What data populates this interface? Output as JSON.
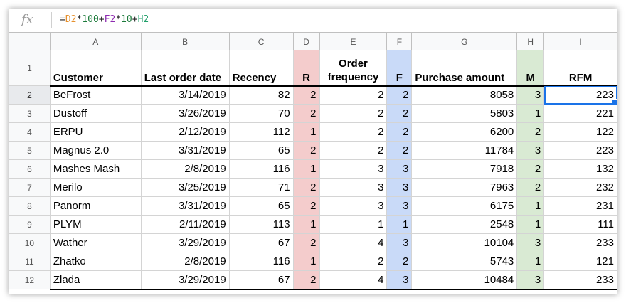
{
  "formula_bar": {
    "icon": "fx-icon",
    "fx_label": "fx",
    "parts": {
      "eq": "=",
      "d2": "D2",
      "t1": "*",
      "n100": "100",
      "p1": "+",
      "f2": "F2",
      "t2": "*",
      "n10": "10",
      "p2": "+",
      "h2": "H2"
    }
  },
  "colors": {
    "r_fill": "#f4cccc",
    "f_fill": "#c9daf8",
    "m_fill": "#d9ead3",
    "selection": "#1a73e8"
  },
  "columns": [
    "A",
    "B",
    "C",
    "D",
    "E",
    "F",
    "G",
    "H",
    "I"
  ],
  "row_numbers": [
    "1",
    "2",
    "3",
    "4",
    "5",
    "6",
    "7",
    "8",
    "9",
    "10",
    "11",
    "12"
  ],
  "headers": {
    "customer": "Customer",
    "last_order_date": "Last order date",
    "recency": "Recency",
    "r": "R",
    "order_frequency": "Order frequency",
    "f": "F",
    "purchase_amount": "Purchase amount",
    "m": "M",
    "rfm": "RFM"
  },
  "rows": [
    [
      "BeFrost",
      "3/14/2019",
      "82",
      "2",
      "2",
      "2",
      "8058",
      "3",
      "223"
    ],
    [
      "Dustoff",
      "3/26/2019",
      "70",
      "2",
      "2",
      "2",
      "5803",
      "1",
      "221"
    ],
    [
      "ERPU",
      "2/12/2019",
      "112",
      "1",
      "2",
      "2",
      "6200",
      "2",
      "122"
    ],
    [
      "Magnus 2.0",
      "3/31/2019",
      "65",
      "2",
      "2",
      "2",
      "11784",
      "3",
      "223"
    ],
    [
      "Mashes Mash",
      "2/8/2019",
      "116",
      "1",
      "3",
      "3",
      "7918",
      "2",
      "132"
    ],
    [
      "Merilo",
      "3/25/2019",
      "71",
      "2",
      "3",
      "3",
      "7963",
      "2",
      "232"
    ],
    [
      "Panorm",
      "3/31/2019",
      "65",
      "2",
      "3",
      "3",
      "6175",
      "1",
      "231"
    ],
    [
      "PLYM",
      "2/11/2019",
      "113",
      "1",
      "1",
      "1",
      "2548",
      "1",
      "111"
    ],
    [
      "Wather",
      "3/29/2019",
      "67",
      "2",
      "4",
      "3",
      "10104",
      "3",
      "233"
    ],
    [
      "Zhatko",
      "2/8/2019",
      "116",
      "1",
      "2",
      "2",
      "5743",
      "1",
      "121"
    ],
    [
      "Zlada",
      "3/29/2019",
      "67",
      "2",
      "4",
      "3",
      "10484",
      "3",
      "233"
    ]
  ],
  "selected_cell": "I2"
}
